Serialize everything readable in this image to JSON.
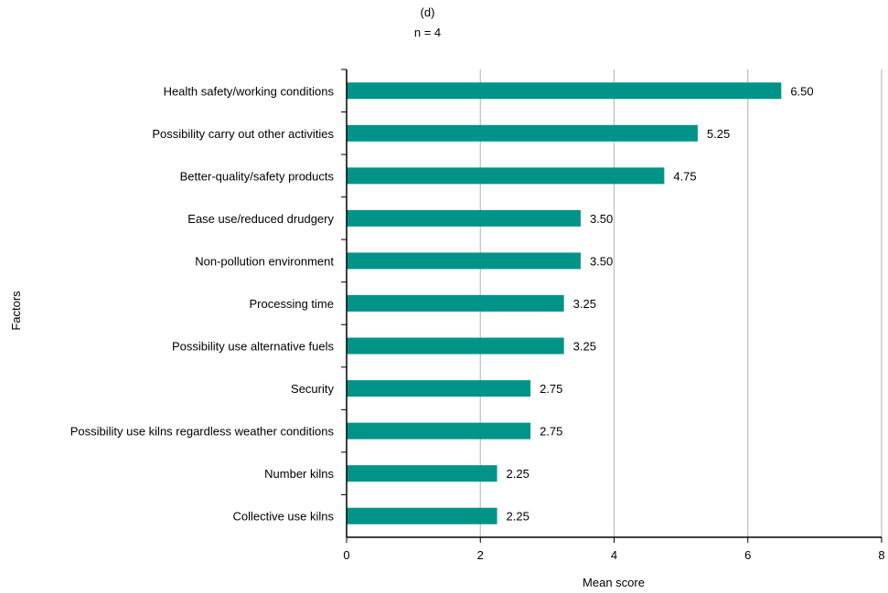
{
  "chart_data": {
    "type": "bar",
    "orientation": "horizontal",
    "title": "(d)",
    "subtitle": "n = 4",
    "xlabel": "Mean score",
    "ylabel": "Factors",
    "xlim": [
      0,
      8
    ],
    "xticks": [
      0,
      2,
      4,
      6,
      8
    ],
    "grid": "vertical",
    "legend": "none",
    "bar_color": "#009488",
    "categories": [
      "Health safety/working conditions",
      "Possibility carry out other activities",
      "Better-quality/safety products",
      "Ease use/reduced drudgery",
      "Non-pollution environment",
      "Processing time",
      "Possibility use alternative fuels",
      "Security",
      "Possibility use kilns regardless weather conditions",
      "Number kilns",
      "Collective use kilns"
    ],
    "values": [
      6.5,
      5.25,
      4.75,
      3.5,
      3.5,
      3.25,
      3.25,
      2.75,
      2.75,
      2.25,
      2.25
    ],
    "value_labels": [
      "6.50",
      "5.25",
      "4.75",
      "3.50",
      "3.50",
      "3.25",
      "3.25",
      "2.75",
      "2.75",
      "2.25",
      "2.25"
    ]
  }
}
